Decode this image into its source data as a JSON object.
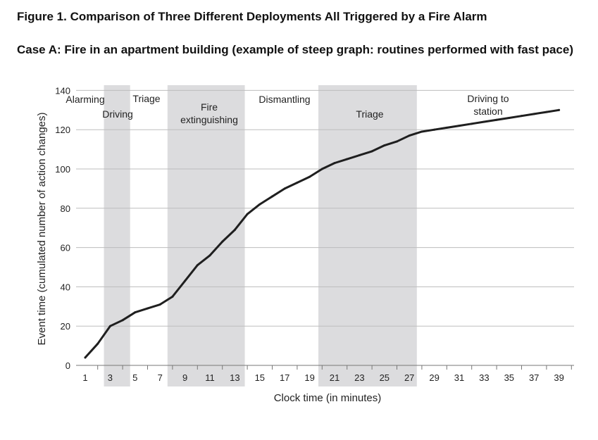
{
  "figure_title": "Figure 1.  Comparison of Three Different Deployments All Triggered by a Fire Alarm",
  "case_title": "Case A: Fire in an apartment building (example of steep graph: routines performed with fast pace)",
  "colors": {
    "line": "#1f1f1f",
    "band": "#dcdcde",
    "grid": "#bdbdbd",
    "text": "#222222"
  },
  "chart_data": {
    "type": "line",
    "title": "Case A: Fire in an apartment building (example of steep graph: routines performed with fast pace)",
    "xlabel": "Clock time (in minutes)",
    "ylabel": "Event time (cumulated number of action changes)",
    "xlim": [
      0.5,
      40
    ],
    "ylim": [
      0,
      140
    ],
    "x_ticks": [
      1,
      3,
      5,
      7,
      9,
      11,
      13,
      15,
      17,
      19,
      21,
      23,
      25,
      27,
      29,
      31,
      33,
      35,
      37,
      39
    ],
    "y_ticks": [
      0,
      20,
      40,
      60,
      80,
      100,
      120,
      140
    ],
    "grid": "horizontal",
    "series": [
      {
        "x": [
          1,
          2,
          3,
          4,
          5,
          6,
          7,
          8,
          9,
          10,
          11,
          12,
          13,
          14,
          15,
          16,
          17,
          18,
          19,
          20,
          21,
          22,
          23,
          24,
          25,
          26,
          27,
          28,
          29,
          30,
          31,
          32,
          33,
          34,
          35,
          36,
          37,
          38,
          39
        ],
        "values": [
          4,
          11,
          20,
          23,
          27,
          29,
          31,
          35,
          43,
          51,
          56,
          63,
          69,
          77,
          82,
          86,
          90,
          93,
          96,
          100,
          103,
          105,
          107,
          109,
          112,
          114,
          117,
          119,
          120,
          121,
          122,
          123,
          124,
          125,
          126,
          127,
          128,
          129,
          130
        ]
      }
    ],
    "phases": [
      {
        "label": "Alarming",
        "start": 1,
        "end": 2.5,
        "shaded": false
      },
      {
        "label": "Driving",
        "start": 2.5,
        "end": 4.6,
        "shaded": true
      },
      {
        "label": "Triage",
        "start": 4.6,
        "end": 7.6,
        "shaded": false
      },
      {
        "label": "Fire extinguishing",
        "start": 7.6,
        "end": 13.8,
        "shaded": true
      },
      {
        "label": "Dismantling",
        "start": 13.8,
        "end": 19.7,
        "shaded": false
      },
      {
        "label": "Triage",
        "start": 19.7,
        "end": 27.6,
        "shaded": true
      },
      {
        "label": "Driving to station",
        "start": 27.6,
        "end": 39,
        "shaded": false
      }
    ]
  }
}
